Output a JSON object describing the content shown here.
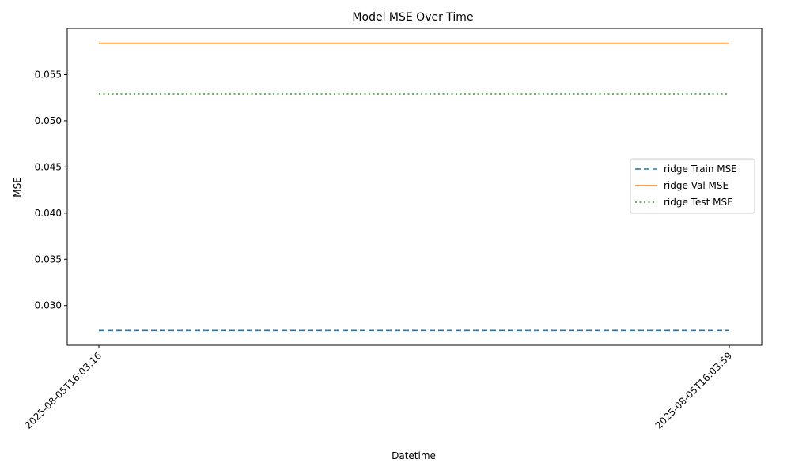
{
  "chart_data": {
    "type": "line",
    "title": "Model MSE Over Time",
    "xlabel": "Datetime",
    "ylabel": "MSE",
    "x": [
      "2025-08-05T16:03:16",
      "2025-08-05T16:03:59"
    ],
    "series": [
      {
        "name": "ridge Train MSE",
        "values": [
          0.0273,
          0.0273
        ],
        "color": "#1f77b4",
        "linestyle": "dashed"
      },
      {
        "name": "ridge Val MSE",
        "values": [
          0.0584,
          0.0584
        ],
        "color": "#ff7f0e",
        "linestyle": "solid"
      },
      {
        "name": "ridge Test MSE",
        "values": [
          0.0529,
          0.0529
        ],
        "color": "#2ca02c",
        "linestyle": "dotted"
      }
    ],
    "yticks": [
      "0.030",
      "0.035",
      "0.040",
      "0.045",
      "0.050",
      "0.055"
    ],
    "ylim": [
      0.0257,
      0.06
    ],
    "grid": false,
    "legend_position": "center-right"
  }
}
